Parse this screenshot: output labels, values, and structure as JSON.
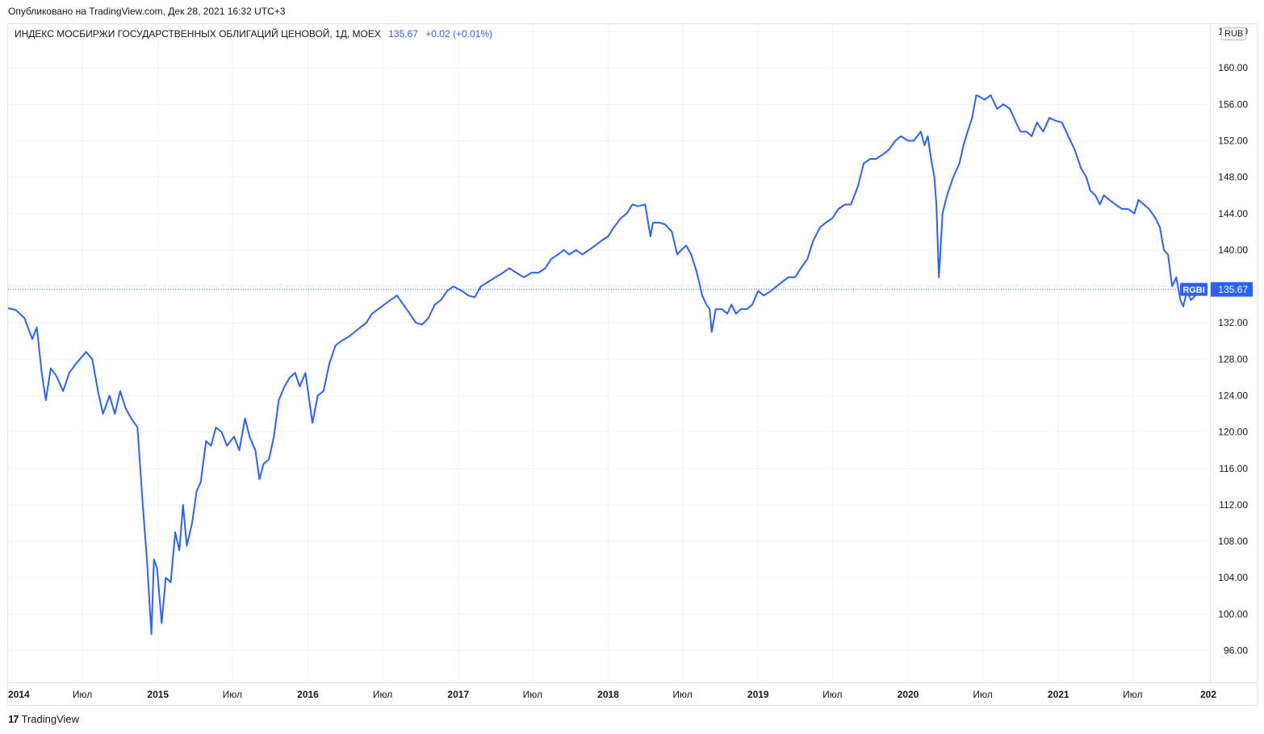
{
  "header": {
    "published": "Опубликовано на TradingView.com, Дек 28, 2021 16:32 UTC+3"
  },
  "legend": {
    "title": "ИНДЕКС МОСБИРЖИ ГОСУДАРСТВЕННЫХ ОБЛИГАЦИЙ ЦЕНОВОЙ, 1Д, MOEX",
    "last": "135.67",
    "change": "+0.02 (+0.01%)"
  },
  "currency": "RUB",
  "footer": {
    "logo_text": "TradingView",
    "logo_mark": "17"
  },
  "colors": {
    "line": "#2962ff",
    "grid": "#f0f3fa",
    "axis_text": "#131722",
    "badge": "#2962ff"
  },
  "chart_data": {
    "type": "line",
    "symbol": "RGBI",
    "last_value": 135.67,
    "last_label": "135.67",
    "ylim": [
      92.5,
      164.8
    ],
    "yticks": [
      "96.00",
      "100.00",
      "104.00",
      "108.00",
      "112.00",
      "116.00",
      "120.00",
      "124.00",
      "128.00",
      "132.00",
      "136.00",
      "140.00",
      "144.00",
      "148.00",
      "152.00",
      "156.00",
      "160.00",
      "164.00"
    ],
    "xlim": [
      "2014-01-01",
      "2022-01-01"
    ],
    "xticks": [
      {
        "date": "2014-01-01",
        "label": "2014",
        "bold": true
      },
      {
        "date": "2014-07-01",
        "label": "Июл",
        "bold": false
      },
      {
        "date": "2015-01-01",
        "label": "2015",
        "bold": true
      },
      {
        "date": "2015-07-01",
        "label": "Июл",
        "bold": false
      },
      {
        "date": "2016-01-01",
        "label": "2016",
        "bold": true
      },
      {
        "date": "2016-07-01",
        "label": "Июл",
        "bold": false
      },
      {
        "date": "2017-01-01",
        "label": "2017",
        "bold": true
      },
      {
        "date": "2017-07-01",
        "label": "Июл",
        "bold": false
      },
      {
        "date": "2018-01-01",
        "label": "2018",
        "bold": true
      },
      {
        "date": "2018-07-01",
        "label": "Июл",
        "bold": false
      },
      {
        "date": "2019-01-01",
        "label": "2019",
        "bold": true
      },
      {
        "date": "2019-07-01",
        "label": "Июл",
        "bold": false
      },
      {
        "date": "2020-01-01",
        "label": "2020",
        "bold": true
      },
      {
        "date": "2020-07-01",
        "label": "Июл",
        "bold": false
      },
      {
        "date": "2021-01-01",
        "label": "2021",
        "bold": true
      },
      {
        "date": "2021-07-01",
        "label": "Июл",
        "bold": false
      },
      {
        "date": "2022-01-01",
        "label": "202",
        "bold": true
      }
    ],
    "grid": true,
    "series": [
      {
        "name": "RGBI",
        "points": [
          [
            "2014-01-01",
            133.6
          ],
          [
            "2014-01-20",
            133.4
          ],
          [
            "2014-02-10",
            132.5
          ],
          [
            "2014-03-01",
            130.2
          ],
          [
            "2014-03-12",
            131.5
          ],
          [
            "2014-03-24",
            126.5
          ],
          [
            "2014-04-03",
            123.5
          ],
          [
            "2014-04-15",
            127.0
          ],
          [
            "2014-04-28",
            126.2
          ],
          [
            "2014-05-15",
            124.5
          ],
          [
            "2014-05-30",
            126.5
          ],
          [
            "2014-06-15",
            127.5
          ],
          [
            "2014-07-10",
            128.8
          ],
          [
            "2014-07-25",
            128.0
          ],
          [
            "2014-08-08",
            124.5
          ],
          [
            "2014-08-20",
            122.0
          ],
          [
            "2014-09-05",
            124.0
          ],
          [
            "2014-09-18",
            122.0
          ],
          [
            "2014-10-01",
            124.5
          ],
          [
            "2014-10-15",
            122.5
          ],
          [
            "2014-10-28",
            121.5
          ],
          [
            "2014-11-12",
            120.5
          ],
          [
            "2014-11-25",
            112.0
          ],
          [
            "2014-12-05",
            106.0
          ],
          [
            "2014-12-16",
            97.8
          ],
          [
            "2014-12-22",
            106.0
          ],
          [
            "2014-12-30",
            105.0
          ],
          [
            "2015-01-10",
            99.0
          ],
          [
            "2015-01-20",
            104.0
          ],
          [
            "2015-02-01",
            103.5
          ],
          [
            "2015-02-12",
            109.0
          ],
          [
            "2015-02-22",
            107.0
          ],
          [
            "2015-03-03",
            112.0
          ],
          [
            "2015-03-12",
            107.5
          ],
          [
            "2015-03-25",
            110.0
          ],
          [
            "2015-04-05",
            113.5
          ],
          [
            "2015-04-15",
            114.5
          ],
          [
            "2015-04-28",
            119.0
          ],
          [
            "2015-05-10",
            118.5
          ],
          [
            "2015-05-22",
            120.5
          ],
          [
            "2015-06-05",
            120.0
          ],
          [
            "2015-06-18",
            118.5
          ],
          [
            "2015-07-05",
            119.5
          ],
          [
            "2015-07-18",
            118.0
          ],
          [
            "2015-08-01",
            121.5
          ],
          [
            "2015-08-12",
            119.5
          ],
          [
            "2015-08-26",
            118.0
          ],
          [
            "2015-09-05",
            114.8
          ],
          [
            "2015-09-15",
            116.5
          ],
          [
            "2015-09-28",
            117.0
          ],
          [
            "2015-10-10",
            119.5
          ],
          [
            "2015-10-22",
            123.5
          ],
          [
            "2015-11-05",
            125.0
          ],
          [
            "2015-11-18",
            126.0
          ],
          [
            "2015-12-01",
            126.5
          ],
          [
            "2015-12-12",
            125.0
          ],
          [
            "2015-12-26",
            126.5
          ],
          [
            "2016-01-12",
            121.0
          ],
          [
            "2016-01-25",
            124.0
          ],
          [
            "2016-02-08",
            124.5
          ],
          [
            "2016-02-22",
            127.5
          ],
          [
            "2016-03-08",
            129.5
          ],
          [
            "2016-03-22",
            130.0
          ],
          [
            "2016-04-10",
            130.5
          ],
          [
            "2016-04-24",
            131.0
          ],
          [
            "2016-05-08",
            131.5
          ],
          [
            "2016-05-22",
            132.0
          ],
          [
            "2016-06-05",
            133.0
          ],
          [
            "2016-06-20",
            133.5
          ],
          [
            "2016-07-05",
            134.0
          ],
          [
            "2016-07-20",
            134.5
          ],
          [
            "2016-08-05",
            135.0
          ],
          [
            "2016-08-20",
            134.0
          ],
          [
            "2016-09-05",
            133.0
          ],
          [
            "2016-09-20",
            132.0
          ],
          [
            "2016-10-05",
            131.8
          ],
          [
            "2016-10-20",
            132.5
          ],
          [
            "2016-11-05",
            134.0
          ],
          [
            "2016-11-20",
            134.5
          ],
          [
            "2016-12-05",
            135.5
          ],
          [
            "2016-12-20",
            136.0
          ],
          [
            "2017-01-10",
            135.5
          ],
          [
            "2017-01-25",
            135.0
          ],
          [
            "2017-02-10",
            134.8
          ],
          [
            "2017-02-25",
            136.0
          ],
          [
            "2017-03-15",
            136.5
          ],
          [
            "2017-04-01",
            137.0
          ],
          [
            "2017-04-20",
            137.5
          ],
          [
            "2017-05-05",
            138.0
          ],
          [
            "2017-05-22",
            137.5
          ],
          [
            "2017-06-10",
            137.0
          ],
          [
            "2017-06-28",
            137.5
          ],
          [
            "2017-07-15",
            137.5
          ],
          [
            "2017-08-01",
            138.0
          ],
          [
            "2017-08-15",
            139.0
          ],
          [
            "2017-09-01",
            139.5
          ],
          [
            "2017-09-15",
            140.0
          ],
          [
            "2017-09-28",
            139.5
          ],
          [
            "2017-10-15",
            140.0
          ],
          [
            "2017-10-30",
            139.5
          ],
          [
            "2017-11-15",
            140.0
          ],
          [
            "2017-12-01",
            140.5
          ],
          [
            "2017-12-15",
            141.0
          ],
          [
            "2018-01-01",
            141.5
          ],
          [
            "2018-01-15",
            142.5
          ],
          [
            "2018-02-01",
            143.5
          ],
          [
            "2018-02-15",
            144.0
          ],
          [
            "2018-03-01",
            145.0
          ],
          [
            "2018-03-15",
            144.8
          ],
          [
            "2018-04-01",
            145.0
          ],
          [
            "2018-04-10",
            142.5
          ],
          [
            "2018-04-14",
            141.5
          ],
          [
            "2018-04-20",
            143.0
          ],
          [
            "2018-05-05",
            143.0
          ],
          [
            "2018-05-20",
            142.8
          ],
          [
            "2018-06-05",
            142.0
          ],
          [
            "2018-06-18",
            139.5
          ],
          [
            "2018-06-28",
            140.0
          ],
          [
            "2018-07-10",
            140.5
          ],
          [
            "2018-07-22",
            139.5
          ],
          [
            "2018-08-05",
            137.5
          ],
          [
            "2018-08-18",
            135.0
          ],
          [
            "2018-08-28",
            134.0
          ],
          [
            "2018-09-05",
            133.5
          ],
          [
            "2018-09-10",
            131.0
          ],
          [
            "2018-09-20",
            133.5
          ],
          [
            "2018-10-05",
            133.5
          ],
          [
            "2018-10-18",
            133.0
          ],
          [
            "2018-10-28",
            134.0
          ],
          [
            "2018-11-08",
            133.0
          ],
          [
            "2018-11-20",
            133.5
          ],
          [
            "2018-12-05",
            133.5
          ],
          [
            "2018-12-18",
            134.0
          ],
          [
            "2019-01-01",
            135.5
          ],
          [
            "2019-01-15",
            135.0
          ],
          [
            "2019-02-01",
            135.5
          ],
          [
            "2019-02-15",
            136.0
          ],
          [
            "2019-03-01",
            136.5
          ],
          [
            "2019-03-15",
            137.0
          ],
          [
            "2019-04-01",
            137.0
          ],
          [
            "2019-04-15",
            138.0
          ],
          [
            "2019-05-01",
            139.0
          ],
          [
            "2019-05-15",
            141.0
          ],
          [
            "2019-06-01",
            142.5
          ],
          [
            "2019-06-15",
            143.0
          ],
          [
            "2019-07-01",
            143.5
          ],
          [
            "2019-07-15",
            144.5
          ],
          [
            "2019-08-01",
            145.0
          ],
          [
            "2019-08-15",
            145.0
          ],
          [
            "2019-09-01",
            147.0
          ],
          [
            "2019-09-15",
            149.5
          ],
          [
            "2019-10-01",
            150.0
          ],
          [
            "2019-10-15",
            150.0
          ],
          [
            "2019-11-01",
            150.5
          ],
          [
            "2019-11-15",
            151.0
          ],
          [
            "2019-12-01",
            152.0
          ],
          [
            "2019-12-15",
            152.5
          ],
          [
            "2020-01-01",
            152.0
          ],
          [
            "2020-01-15",
            152.0
          ],
          [
            "2020-02-01",
            153.0
          ],
          [
            "2020-02-10",
            151.5
          ],
          [
            "2020-02-18",
            152.5
          ],
          [
            "2020-02-26",
            150.0
          ],
          [
            "2020-03-05",
            148.0
          ],
          [
            "2020-03-10",
            145.0
          ],
          [
            "2020-03-16",
            137.0
          ],
          [
            "2020-03-20",
            140.0
          ],
          [
            "2020-03-25",
            144.0
          ],
          [
            "2020-04-05",
            146.0
          ],
          [
            "2020-04-20",
            148.0
          ],
          [
            "2020-05-05",
            149.5
          ],
          [
            "2020-05-15",
            151.5
          ],
          [
            "2020-05-25",
            153.0
          ],
          [
            "2020-06-05",
            154.5
          ],
          [
            "2020-06-15",
            157.0
          ],
          [
            "2020-06-25",
            156.8
          ],
          [
            "2020-07-05",
            156.5
          ],
          [
            "2020-07-20",
            157.0
          ],
          [
            "2020-08-05",
            155.5
          ],
          [
            "2020-08-20",
            156.0
          ],
          [
            "2020-09-05",
            155.5
          ],
          [
            "2020-09-20",
            154.0
          ],
          [
            "2020-10-01",
            153.0
          ],
          [
            "2020-10-15",
            153.0
          ],
          [
            "2020-10-28",
            152.5
          ],
          [
            "2020-11-10",
            154.0
          ],
          [
            "2020-11-25",
            153.0
          ],
          [
            "2020-12-10",
            154.5
          ],
          [
            "2020-12-25",
            154.2
          ],
          [
            "2021-01-10",
            154.0
          ],
          [
            "2021-01-25",
            152.5
          ],
          [
            "2021-02-10",
            151.0
          ],
          [
            "2021-02-25",
            149.0
          ],
          [
            "2021-03-10",
            148.0
          ],
          [
            "2021-03-20",
            146.5
          ],
          [
            "2021-04-01",
            146.0
          ],
          [
            "2021-04-12",
            145.0
          ],
          [
            "2021-04-22",
            146.0
          ],
          [
            "2021-05-05",
            145.5
          ],
          [
            "2021-05-20",
            145.0
          ],
          [
            "2021-06-05",
            144.5
          ],
          [
            "2021-06-20",
            144.5
          ],
          [
            "2021-07-05",
            144.0
          ],
          [
            "2021-07-15",
            145.5
          ],
          [
            "2021-07-28",
            145.0
          ],
          [
            "2021-08-10",
            144.5
          ],
          [
            "2021-08-25",
            143.5
          ],
          [
            "2021-09-05",
            142.5
          ],
          [
            "2021-09-15",
            140.0
          ],
          [
            "2021-09-25",
            139.5
          ],
          [
            "2021-10-05",
            136.0
          ],
          [
            "2021-10-15",
            137.0
          ],
          [
            "2021-10-25",
            134.5
          ],
          [
            "2021-11-01",
            133.8
          ],
          [
            "2021-11-10",
            135.5
          ],
          [
            "2021-11-20",
            134.5
          ],
          [
            "2021-12-01",
            135.0
          ],
          [
            "2021-12-10",
            135.2
          ],
          [
            "2021-12-20",
            135.5
          ],
          [
            "2021-12-28",
            135.67
          ]
        ]
      }
    ]
  }
}
